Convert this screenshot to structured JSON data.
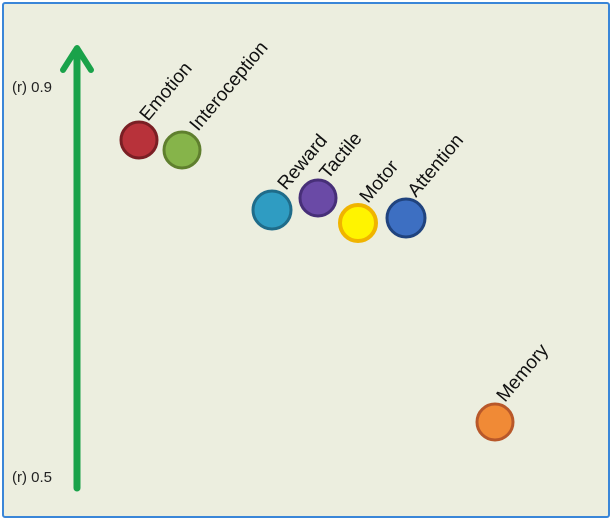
{
  "axis": {
    "top_label": "(r) 0.9",
    "bottom_label": "(r) 0.5",
    "color": "#1aa24a"
  },
  "nodes": [
    {
      "id": "emotion",
      "label": "Emotion",
      "fill": "#b8323a",
      "ring": "#7a1f24"
    },
    {
      "id": "interoception",
      "label": "Interoception",
      "fill": "#86b44a",
      "ring": "#5f7f2e"
    },
    {
      "id": "reward",
      "label": "Reward",
      "fill": "#2f9cc2",
      "ring": "#1f6c8a"
    },
    {
      "id": "tactile",
      "label": "Tactile",
      "fill": "#6a4aa6",
      "ring": "#472f78"
    },
    {
      "id": "motor",
      "label": "Motor",
      "fill": "#fff400",
      "ring": "#f0b400"
    },
    {
      "id": "attention",
      "label": "Attention",
      "fill": "#3d6fc2",
      "ring": "#20437e"
    },
    {
      "id": "memory",
      "label": "Memory",
      "fill": "#f08a36",
      "ring": "#b8582a"
    }
  ]
}
